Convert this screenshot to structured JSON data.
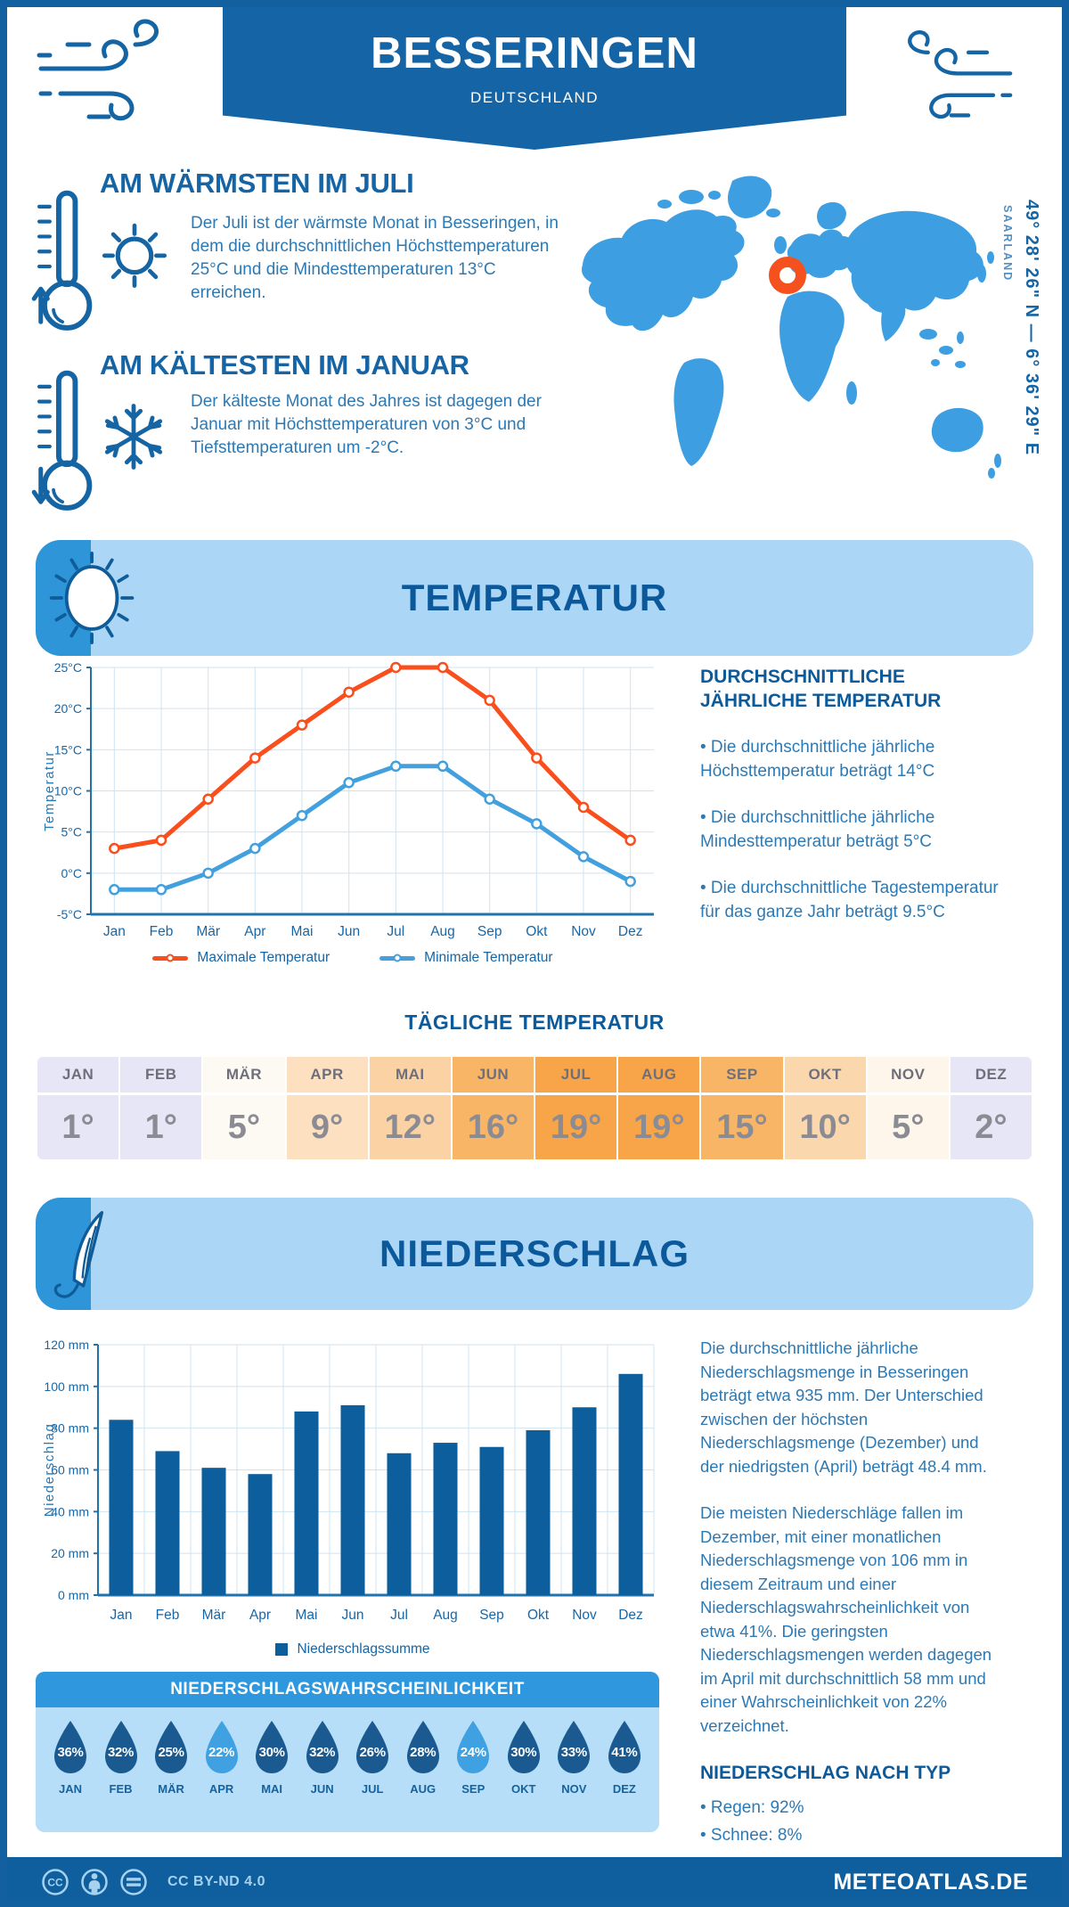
{
  "page": {
    "title": "BESSERINGEN",
    "subtitle": "DEUTSCHLAND"
  },
  "location": {
    "coordinates": "49° 28' 26\" N — 6° 36' 29\" E",
    "region": "SAARLAND"
  },
  "warmest": {
    "heading": "AM WÄRMSTEN IM JULI",
    "text": "Der Juli ist der wärmste Monat in Besseringen, in dem die durchschnittlichen Höchsttemperaturen 25°C und die Mindesttemperaturen 13°C erreichen."
  },
  "coldest": {
    "heading": "AM KÄLTESTEN IM JANUAR",
    "text": "Der kälteste Monat des Jahres ist dagegen der Januar mit Höchsttemperaturen von 3°C und Tiefsttemperaturen um -2°C."
  },
  "temperature_section": {
    "title": "TEMPERATUR",
    "annual": {
      "heading": "DURCHSCHNITTLICHE JÄHRLICHE TEMPERATUR",
      "bullets": [
        "• Die durchschnittliche jährliche Höchsttemperatur beträgt 14°C",
        "• Die durchschnittliche jährliche Mindesttemperatur beträgt 5°C",
        "• Die durchschnittliche Tagestemperatur für das ganze Jahr beträgt 9.5°C"
      ]
    },
    "daily_title": "TÄGLICHE TEMPERATUR",
    "daily_table": {
      "months": [
        "JAN",
        "FEB",
        "MÄR",
        "APR",
        "MAI",
        "JUN",
        "JUL",
        "AUG",
        "SEP",
        "OKT",
        "NOV",
        "DEZ"
      ],
      "values": [
        "1°",
        "1°",
        "5°",
        "9°",
        "12°",
        "16°",
        "19°",
        "19°",
        "15°",
        "10°",
        "5°",
        "2°"
      ],
      "cell_colors": [
        "#E6E6F7",
        "#E6E6F7",
        "#FDFAF3",
        "#FCE0C0",
        "#FBD2A4",
        "#F9B566",
        "#F8A549",
        "#F8A549",
        "#F9B566",
        "#FBD7AE",
        "#FEF6EB",
        "#E6E6F7"
      ]
    }
  },
  "precipitation_section": {
    "title": "NIEDERSCHLAG",
    "paragraphs": [
      "Die durchschnittliche jährliche Niederschlagsmenge in Besseringen beträgt etwa 935 mm. Der Unterschied zwischen der höchsten Niederschlagsmenge (Dezember) und der niedrigsten (April) beträgt 48.4 mm.",
      "Die meisten Niederschläge fallen im Dezember, mit einer monatlichen Niederschlagsmenge von 106 mm in diesem Zeitraum und einer Niederschlagswahrscheinlichkeit von etwa 41%. Die geringsten Niederschlagsmengen werden dagegen im April mit durchschnittlich 58 mm und einer Wahrscheinlichkeit von 22% verzeichnet."
    ],
    "by_type": {
      "heading": "NIEDERSCHLAG NACH TYP",
      "bullets": [
        "• Regen: 92%",
        "• Schnee: 8%"
      ]
    },
    "probability": {
      "title": "NIEDERSCHLAGSWAHRSCHEINLICHKEIT",
      "months": [
        "JAN",
        "FEB",
        "MÄR",
        "APR",
        "MAI",
        "JUN",
        "JUL",
        "AUG",
        "SEP",
        "OKT",
        "NOV",
        "DEZ"
      ],
      "values": [
        "36%",
        "32%",
        "25%",
        "22%",
        "30%",
        "32%",
        "26%",
        "28%",
        "24%",
        "30%",
        "33%",
        "41%"
      ],
      "light": [
        false,
        false,
        false,
        true,
        false,
        false,
        false,
        false,
        true,
        false,
        false,
        false
      ]
    }
  },
  "footer": {
    "license": "CC BY-ND 4.0",
    "site": "METEOATLAS.DE"
  },
  "colors": {
    "primary_blue": "#1565A5",
    "banner_bg": "#1565A6",
    "light_banner_bg": "#ABD6F6",
    "banner_accent": "#2E96D8",
    "section_title": "#0B589A",
    "body_text": "#2C79B4",
    "map_fill": "#3D9EE1",
    "map_marker": "#F4511E",
    "chart_grid": "#CFE4F2",
    "chart_axis": "#2273AC",
    "chart_tick": "#1767A8",
    "max_line": "#FA4E1D",
    "min_line": "#43A0DE",
    "bar_fill": "#0D5E9D",
    "droplet_dark": "#1A5A90",
    "droplet_light": "#3FA1E1",
    "probability_header_bg": "#2E97DE",
    "probability_panel_bg": "#B7DEF9",
    "footer_bg": "#0F5F9E",
    "footer_text": "#A6D2EF"
  },
  "chart_data": [
    {
      "type": "line",
      "title": "Monatliche Temperatur",
      "categories": [
        "Jan",
        "Feb",
        "Mär",
        "Apr",
        "Mai",
        "Jun",
        "Jul",
        "Aug",
        "Sep",
        "Okt",
        "Nov",
        "Dez"
      ],
      "series": [
        {
          "name": "Maximale Temperatur",
          "color": "#FA4E1D",
          "values": [
            3,
            4,
            9,
            14,
            18,
            22,
            25,
            25,
            21,
            14,
            8,
            4
          ]
        },
        {
          "name": "Minimale Temperatur",
          "color": "#43A0DE",
          "values": [
            -2,
            -2,
            0,
            3,
            7,
            11,
            13,
            13,
            9,
            6,
            2,
            -1
          ]
        }
      ],
      "xlabel": "",
      "ylabel": "Temperatur",
      "ylim": [
        -5,
        25
      ],
      "ytick_step": 5,
      "ytick_suffix": "°C",
      "grid": true,
      "legend_position": "bottom"
    },
    {
      "type": "bar",
      "title": "Monatliche Niederschlagssumme",
      "categories": [
        "Jan",
        "Feb",
        "Mär",
        "Apr",
        "Mai",
        "Jun",
        "Jul",
        "Aug",
        "Sep",
        "Okt",
        "Nov",
        "Dez"
      ],
      "series": [
        {
          "name": "Niederschlagssumme",
          "color": "#0D5E9D",
          "values": [
            84,
            69,
            61,
            58,
            88,
            91,
            68,
            73,
            71,
            79,
            90,
            106
          ]
        }
      ],
      "xlabel": "",
      "ylabel": "Niederschlag",
      "ylim": [
        0,
        120
      ],
      "ytick_step": 20,
      "ytick_suffix": " mm",
      "grid": true,
      "legend_position": "bottom"
    }
  ]
}
